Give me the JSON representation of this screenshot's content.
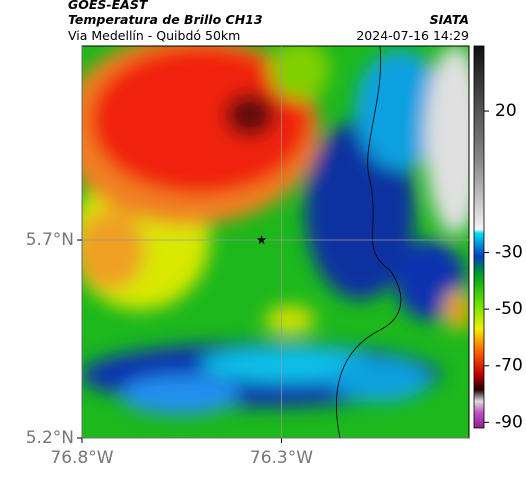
{
  "header": {
    "satellite": "GOES-EAST",
    "product": "Temperatura de Brillo CH13",
    "route": "Via Medellín - Quibdó 50km",
    "source": "SIATA",
    "timestamp": "2024-07-16 14:29"
  },
  "chart_data": {
    "type": "map",
    "xlim": [
      -76.8,
      -75.83
    ],
    "ylim": [
      5.2,
      6.19
    ],
    "xticks": [
      {
        "value": -76.8,
        "label": "76.8°W"
      },
      {
        "value": -76.3,
        "label": "76.3°W"
      }
    ],
    "yticks": [
      {
        "value": 5.7,
        "label": "5.7°N"
      },
      {
        "value": 5.2,
        "label": "5.2°N"
      }
    ],
    "grid": true,
    "marker": {
      "lon": -76.35,
      "lat": 5.7
    },
    "colorbar": {
      "lim": [
        -92,
        43
      ],
      "ticks": [
        20,
        -30,
        -50,
        -70,
        -90
      ]
    }
  }
}
